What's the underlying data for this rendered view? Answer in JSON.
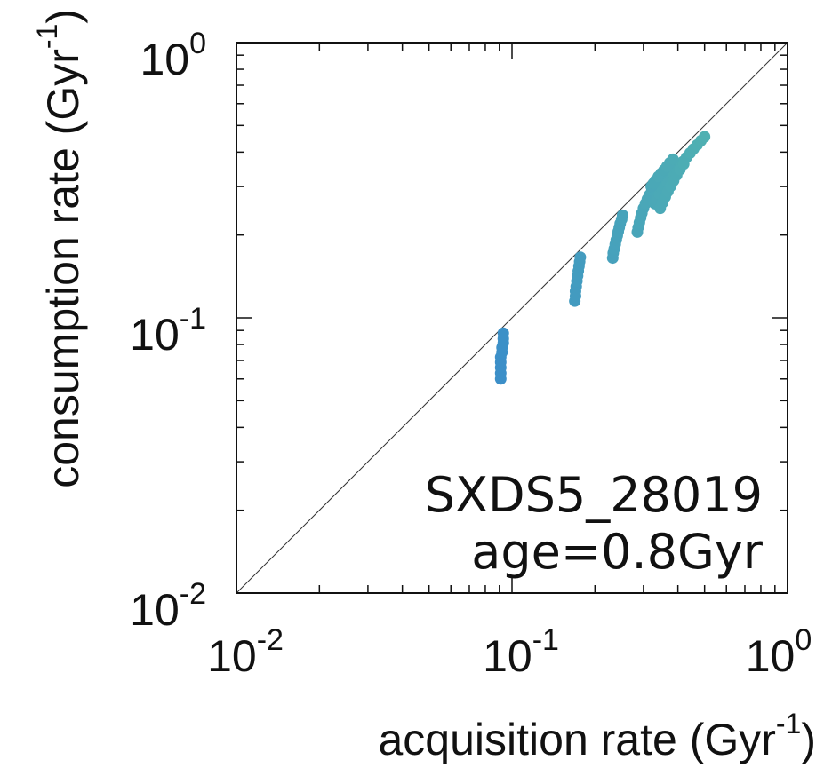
{
  "chart_data": {
    "type": "scatter",
    "title": "",
    "xlabel": "acquisition rate (Gyr",
    "xlabel_sup": "-1",
    "xlabel_end": ")",
    "ylabel": "consumption rate (Gyr",
    "ylabel_sup": "-1",
    "ylabel_end": ")",
    "x_scale": "log",
    "y_scale": "log",
    "xlim": [
      0.01,
      1
    ],
    "ylim": [
      0.01,
      1
    ],
    "x_ticks": [
      {
        "base": "10",
        "exp": "-2",
        "value": 0.01
      },
      {
        "base": "10",
        "exp": "-1",
        "value": 0.1
      },
      {
        "base": "10",
        "exp": "0",
        "value": 1
      }
    ],
    "y_ticks": [
      {
        "base": "10",
        "exp": "-2",
        "value": 0.01
      },
      {
        "base": "10",
        "exp": "-1",
        "value": 0.1
      },
      {
        "base": "10",
        "exp": "0",
        "value": 1
      }
    ],
    "reference_line": "y = x",
    "grid": false,
    "legend": "none",
    "annotation": {
      "line1": "SXDS5_28019",
      "line2": "age=0.8Gyr",
      "position": "bottom-right"
    },
    "color_low": "#3c8fc8",
    "color_high": "#4fb0b2",
    "series": [
      {
        "x": [
          0.091,
          0.091,
          0.091,
          0.091,
          0.091,
          0.092,
          0.092,
          0.093,
          0.093,
          0.093
        ],
        "y": [
          0.06,
          0.063,
          0.066,
          0.069,
          0.072,
          0.075,
          0.078,
          0.081,
          0.084,
          0.088
        ]
      },
      {
        "x": [
          0.169,
          0.17,
          0.17,
          0.171,
          0.172,
          0.173,
          0.174,
          0.175,
          0.176,
          0.177
        ],
        "y": [
          0.115,
          0.12,
          0.125,
          0.13,
          0.136,
          0.142,
          0.148,
          0.154,
          0.16,
          0.166
        ]
      },
      {
        "x": [
          0.232,
          0.233,
          0.235,
          0.237,
          0.239,
          0.241,
          0.243,
          0.245,
          0.247,
          0.25,
          0.252
        ],
        "y": [
          0.165,
          0.172,
          0.178,
          0.185,
          0.192,
          0.199,
          0.206,
          0.213,
          0.22,
          0.228,
          0.236
        ]
      },
      {
        "x": [
          0.285,
          0.287,
          0.29,
          0.293,
          0.296,
          0.3,
          0.305,
          0.31,
          0.316,
          0.322
        ],
        "y": [
          0.205,
          0.213,
          0.222,
          0.231,
          0.24,
          0.25,
          0.26,
          0.27,
          0.28,
          0.292
        ]
      },
      {
        "x": [
          0.33,
          0.335,
          0.342,
          0.35,
          0.358,
          0.366,
          0.375,
          0.385,
          0.395,
          0.406,
          0.418,
          0.43,
          0.443,
          0.456,
          0.47,
          0.485,
          0.5
        ],
        "y": [
          0.26,
          0.27,
          0.282,
          0.292,
          0.302,
          0.312,
          0.322,
          0.334,
          0.345,
          0.357,
          0.37,
          0.383,
          0.397,
          0.411,
          0.425,
          0.44,
          0.455
        ]
      },
      {
        "x": [
          0.32,
          0.326,
          0.332,
          0.34,
          0.348,
          0.356,
          0.365,
          0.374,
          0.384
        ],
        "y": [
          0.3,
          0.308,
          0.316,
          0.326,
          0.335,
          0.344,
          0.355,
          0.366,
          0.377
        ]
      },
      {
        "x": [
          0.345,
          0.352,
          0.36,
          0.368,
          0.377,
          0.386,
          0.396,
          0.407,
          0.42
        ],
        "y": [
          0.25,
          0.262,
          0.275,
          0.288,
          0.301,
          0.315,
          0.33,
          0.346,
          0.362
        ]
      }
    ]
  }
}
